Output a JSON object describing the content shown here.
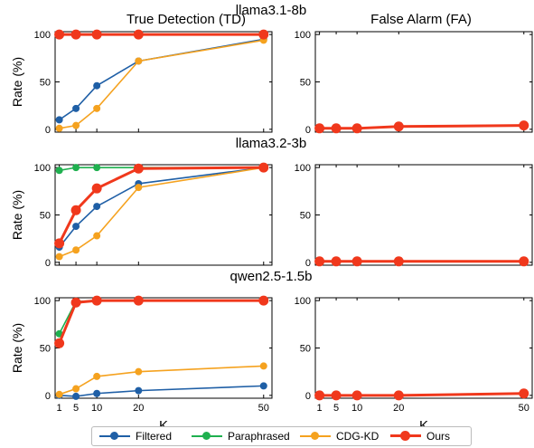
{
  "column_titles": [
    "True Detection (TD)",
    "False Alarm (FA)"
  ],
  "chart_data": [
    {
      "type": "line",
      "model": "llama3.1-8b",
      "panel": "True Detection (TD)",
      "x": [
        1,
        5,
        10,
        20,
        50
      ],
      "xlabel": "",
      "ylabel": "Rate (%)",
      "xlim": [
        0,
        52
      ],
      "ylim": [
        -3,
        103
      ],
      "yticks": [
        0,
        50,
        100
      ],
      "series": [
        {
          "name": "Filtered",
          "values": [
            10,
            22,
            46,
            72,
            95
          ]
        },
        {
          "name": "Paraphrased",
          "values": [
            100,
            100,
            100,
            100,
            100
          ]
        },
        {
          "name": "CDG-KD",
          "values": [
            1,
            4,
            22,
            72,
            94
          ]
        },
        {
          "name": "Ours",
          "values": [
            100,
            100,
            100,
            100,
            100
          ]
        }
      ]
    },
    {
      "type": "line",
      "model": "llama3.1-8b",
      "panel": "False Alarm (FA)",
      "x": [
        1,
        5,
        10,
        20,
        50
      ],
      "xlabel": "",
      "ylabel": "",
      "xlim": [
        0,
        52
      ],
      "ylim": [
        -3,
        103
      ],
      "yticks": [
        0,
        50,
        100
      ],
      "series": [
        {
          "name": "Ours",
          "values": [
            1,
            1,
            1,
            3,
            4
          ]
        }
      ]
    },
    {
      "type": "line",
      "model": "llama3.2-3b",
      "panel": "True Detection (TD)",
      "x": [
        1,
        5,
        10,
        20,
        50
      ],
      "xlabel": "",
      "ylabel": "Rate (%)",
      "xlim": [
        0,
        52
      ],
      "ylim": [
        -3,
        103
      ],
      "yticks": [
        0,
        50,
        100
      ],
      "series": [
        {
          "name": "Filtered",
          "values": [
            16,
            38,
            59,
            83,
            100
          ]
        },
        {
          "name": "Paraphrased",
          "values": [
            97,
            100,
            100,
            100,
            100
          ]
        },
        {
          "name": "CDG-KD",
          "values": [
            6,
            13,
            28,
            79,
            100
          ]
        },
        {
          "name": "Ours",
          "values": [
            20,
            55,
            78,
            99,
            100
          ]
        }
      ]
    },
    {
      "type": "line",
      "model": "llama3.2-3b",
      "panel": "False Alarm (FA)",
      "x": [
        1,
        5,
        10,
        20,
        50
      ],
      "xlabel": "",
      "ylabel": "",
      "xlim": [
        0,
        52
      ],
      "ylim": [
        -3,
        103
      ],
      "yticks": [
        0,
        50,
        100
      ],
      "series": [
        {
          "name": "Ours",
          "values": [
            1,
            1,
            1,
            1,
            1
          ]
        }
      ]
    },
    {
      "type": "line",
      "model": "qwen2.5-1.5b",
      "panel": "True Detection (TD)",
      "x": [
        1,
        5,
        10,
        20,
        50
      ],
      "xlabel": "K",
      "ylabel": "Rate (%)",
      "xlim": [
        0,
        52
      ],
      "ylim": [
        -3,
        103
      ],
      "yticks": [
        0,
        50,
        100
      ],
      "xticks": [
        1,
        5,
        10,
        20,
        50
      ],
      "series": [
        {
          "name": "Filtered",
          "values": [
            0,
            -1,
            2,
            5,
            10
          ]
        },
        {
          "name": "Paraphrased",
          "values": [
            65,
            99,
            100,
            100,
            100
          ]
        },
        {
          "name": "CDG-KD",
          "values": [
            1,
            7,
            20,
            25,
            31
          ]
        },
        {
          "name": "Ours",
          "values": [
            55,
            98,
            100,
            100,
            100
          ]
        }
      ]
    },
    {
      "type": "line",
      "model": "qwen2.5-1.5b",
      "panel": "False Alarm (FA)",
      "x": [
        1,
        5,
        10,
        20,
        50
      ],
      "xlabel": "K",
      "ylabel": "",
      "xlim": [
        0,
        52
      ],
      "ylim": [
        -3,
        103
      ],
      "yticks": [
        0,
        50,
        100
      ],
      "xticks": [
        1,
        5,
        10,
        20,
        50
      ],
      "series": [
        {
          "name": "Ours",
          "values": [
            0,
            0,
            0,
            0,
            2
          ]
        }
      ]
    }
  ],
  "legend": [
    {
      "label": "Filtered",
      "color": "#1f5fa6"
    },
    {
      "label": "Paraphrased",
      "color": "#1fb04f"
    },
    {
      "label": "CDG-KD",
      "color": "#f5a21f"
    },
    {
      "label": "Ours",
      "color": "#f0381c"
    }
  ],
  "colors": {
    "Filtered": "#1f5fa6",
    "Paraphrased": "#1fb04f",
    "CDG-KD": "#f5a21f",
    "Ours": "#f0381c"
  }
}
